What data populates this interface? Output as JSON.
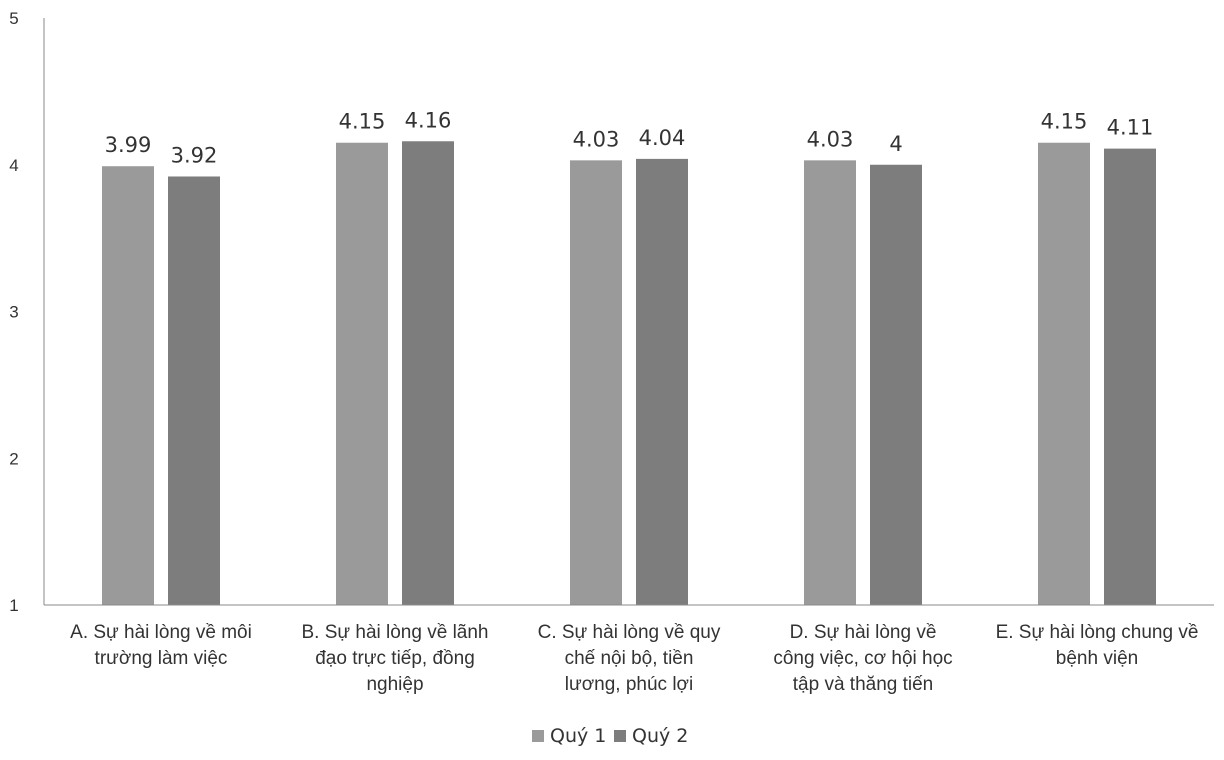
{
  "chart_data": {
    "type": "bar",
    "categories": [
      [
        "A. Sự hài lòng về môi",
        "trường làm việc"
      ],
      [
        "B. Sự hài lòng về lãnh",
        "đạo trực tiếp, đồng",
        "nghiệp"
      ],
      [
        "C. Sự hài lòng về quy",
        "chế nội bộ, tiền",
        "lương, phúc lợi"
      ],
      [
        "D. Sự hài lòng về",
        "công việc, cơ hội học",
        "tập và thăng tiến"
      ],
      [
        "E. Sự hài lòng chung về",
        "bệnh viện"
      ]
    ],
    "series": [
      {
        "name": "Quý 1",
        "values": [
          3.99,
          4.15,
          4.03,
          4.03,
          4.15
        ],
        "labels": [
          "3.99",
          "4.15",
          "4.03",
          "4.03",
          "4.15"
        ],
        "color": "#9a9a9a"
      },
      {
        "name": "Quý 2",
        "values": [
          3.92,
          4.16,
          4.04,
          4,
          4.11
        ],
        "labels": [
          "3.92",
          "4.16",
          "4.04",
          "4",
          "4.11"
        ],
        "color": "#7d7d7d"
      }
    ],
    "ylim": [
      1,
      5
    ],
    "yticks": [
      "1",
      "2",
      "3",
      "4",
      "5"
    ],
    "grid": false,
    "legend": "bottom-center"
  }
}
